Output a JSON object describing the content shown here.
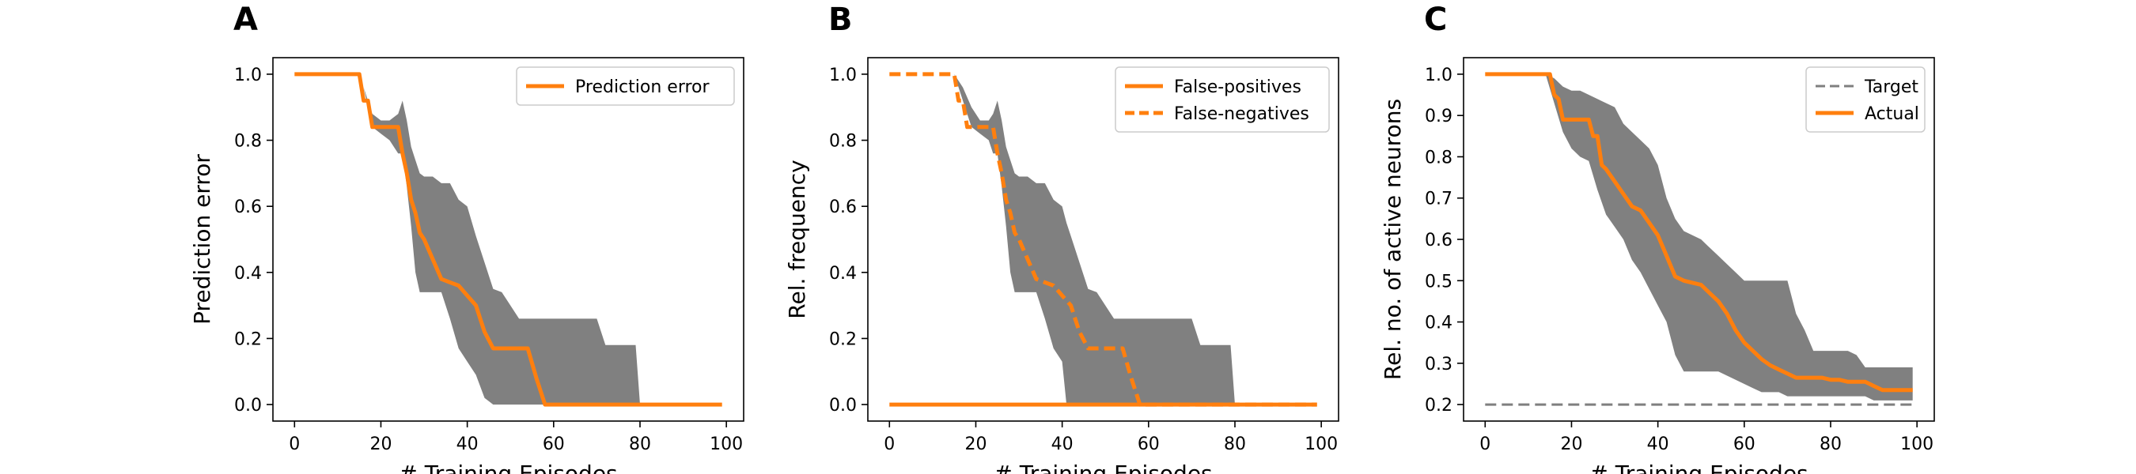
{
  "chart_data": [
    {
      "panel": "A",
      "type": "line",
      "xlabel": "# Training Episodes",
      "ylabel": "Prediction error",
      "xlim": [
        -5,
        104
      ],
      "ylim": [
        -0.05,
        1.05
      ],
      "xticks": [
        0,
        20,
        40,
        60,
        80,
        100
      ],
      "yticks": [
        0.0,
        0.2,
        0.4,
        0.6,
        0.8,
        1.0
      ],
      "ytick_labels": [
        "0.0",
        "0.2",
        "0.4",
        "0.6",
        "0.8",
        "1.0"
      ],
      "grid": false,
      "legend": {
        "position": "top-right"
      },
      "band": {
        "color": "#808080",
        "x": [
          0,
          15,
          16,
          17,
          18,
          20,
          22,
          24,
          25,
          26,
          27,
          28,
          29,
          30,
          32,
          34,
          36,
          38,
          40,
          42,
          44,
          46,
          48,
          50,
          52,
          54,
          56,
          58,
          59,
          60,
          62,
          64,
          66,
          68,
          70,
          72,
          74,
          76,
          78,
          79,
          80,
          85,
          90,
          95,
          99
        ],
        "upper": [
          1.0,
          1.0,
          0.96,
          0.92,
          0.88,
          0.86,
          0.86,
          0.88,
          0.92,
          0.86,
          0.78,
          0.74,
          0.7,
          0.69,
          0.69,
          0.67,
          0.67,
          0.62,
          0.6,
          0.51,
          0.43,
          0.35,
          0.34,
          0.3,
          0.26,
          0.26,
          0.26,
          0.26,
          0.26,
          0.26,
          0.26,
          0.26,
          0.26,
          0.26,
          0.26,
          0.18,
          0.18,
          0.18,
          0.18,
          0.18,
          0.0,
          0.0,
          0.0,
          0.0,
          0.0
        ],
        "lower": [
          1.0,
          1.0,
          0.96,
          0.9,
          0.84,
          0.82,
          0.8,
          0.76,
          0.76,
          0.66,
          0.54,
          0.4,
          0.34,
          0.34,
          0.34,
          0.34,
          0.26,
          0.17,
          0.13,
          0.09,
          0.02,
          0.0,
          0.0,
          0.0,
          0.0,
          0.0,
          0.0,
          0.0,
          0.0,
          0.0,
          0.0,
          0.0,
          0.0,
          0.0,
          0.0,
          0.0,
          0.0,
          0.0,
          0.0,
          0.0,
          0.0,
          0.0,
          0.0,
          0.0,
          0.0
        ]
      },
      "series": [
        {
          "name": "Prediction error",
          "color": "#ff7f0e",
          "dash": "solid",
          "x": [
            0,
            15,
            16,
            17,
            18,
            20,
            22,
            24,
            25,
            26,
            27,
            28,
            29,
            30,
            32,
            34,
            36,
            38,
            40,
            42,
            43,
            44,
            46,
            48,
            50,
            52,
            54,
            56,
            58,
            59,
            60,
            65,
            70,
            80,
            90,
            99
          ],
          "y": [
            1.0,
            1.0,
            0.92,
            0.92,
            0.84,
            0.84,
            0.84,
            0.84,
            0.76,
            0.7,
            0.62,
            0.58,
            0.52,
            0.5,
            0.44,
            0.38,
            0.37,
            0.36,
            0.33,
            0.3,
            0.26,
            0.22,
            0.17,
            0.17,
            0.17,
            0.17,
            0.17,
            0.08,
            0.0,
            0.0,
            0.0,
            0.0,
            0.0,
            0.0,
            0.0,
            0.0
          ]
        }
      ]
    },
    {
      "panel": "B",
      "type": "line",
      "xlabel": "# Training Episodes",
      "ylabel": "Rel. frequency",
      "xlim": [
        -5,
        104
      ],
      "ylim": [
        -0.05,
        1.05
      ],
      "xticks": [
        0,
        20,
        40,
        60,
        80,
        100
      ],
      "yticks": [
        0.0,
        0.2,
        0.4,
        0.6,
        0.8,
        1.0
      ],
      "ytick_labels": [
        "0.0",
        "0.2",
        "0.4",
        "0.6",
        "0.8",
        "1.0"
      ],
      "grid": false,
      "legend": {
        "position": "top-right"
      },
      "band": {
        "color": "#808080",
        "x": [
          15,
          17,
          19,
          21,
          23,
          24,
          25,
          26,
          27,
          28,
          29,
          30,
          32,
          34,
          36,
          38,
          40,
          41,
          42,
          44,
          46,
          48,
          50,
          52,
          54,
          56,
          58,
          60,
          62,
          64,
          66,
          68,
          70,
          72,
          74,
          76,
          78,
          79,
          80
        ],
        "upper": [
          1.0,
          0.96,
          0.9,
          0.86,
          0.86,
          0.88,
          0.92,
          0.86,
          0.78,
          0.74,
          0.7,
          0.69,
          0.69,
          0.67,
          0.67,
          0.62,
          0.6,
          0.55,
          0.51,
          0.43,
          0.35,
          0.34,
          0.3,
          0.26,
          0.26,
          0.26,
          0.26,
          0.26,
          0.26,
          0.26,
          0.26,
          0.26,
          0.26,
          0.18,
          0.18,
          0.18,
          0.18,
          0.18,
          0.0
        ],
        "lower": [
          1.0,
          0.92,
          0.84,
          0.82,
          0.8,
          0.76,
          0.76,
          0.66,
          0.54,
          0.4,
          0.34,
          0.34,
          0.34,
          0.34,
          0.26,
          0.17,
          0.13,
          0.0,
          0.0,
          0.0,
          0.0,
          0.0,
          0.0,
          0.0,
          0.0,
          0.0,
          0.0,
          0.0,
          0.0,
          0.0,
          0.0,
          0.0,
          0.0,
          0.0,
          0.0,
          0.0,
          0.0,
          0.0,
          0.0
        ]
      },
      "series": [
        {
          "name": "False-positives",
          "color": "#ff7f0e",
          "dash": "solid",
          "x": [
            0,
            20,
            40,
            60,
            80,
            99
          ],
          "y": [
            0.0,
            0.0,
            0.0,
            0.0,
            0.0,
            0.0
          ]
        },
        {
          "name": "False-negatives",
          "color": "#ff7f0e",
          "dash": "dashed",
          "x": [
            0,
            15,
            16,
            17,
            18,
            20,
            22,
            24,
            25,
            26,
            27,
            28,
            29,
            30,
            32,
            34,
            36,
            38,
            40,
            42,
            43,
            44,
            46,
            48,
            50,
            52,
            54,
            56,
            58,
            59,
            60,
            65,
            70,
            80,
            90,
            99
          ],
          "y": [
            1.0,
            1.0,
            0.92,
            0.92,
            0.84,
            0.84,
            0.84,
            0.84,
            0.76,
            0.7,
            0.62,
            0.58,
            0.52,
            0.5,
            0.44,
            0.38,
            0.37,
            0.36,
            0.33,
            0.3,
            0.26,
            0.22,
            0.17,
            0.17,
            0.17,
            0.17,
            0.17,
            0.08,
            0.0,
            0.0,
            0.0,
            0.0,
            0.0,
            0.0,
            0.0,
            0.0
          ]
        }
      ]
    },
    {
      "panel": "C",
      "type": "line",
      "xlabel": "# Training Episodes",
      "ylabel": "Rel. no. of active neurons",
      "xlim": [
        -5,
        104
      ],
      "ylim": [
        0.16,
        1.04
      ],
      "xticks": [
        0,
        20,
        40,
        60,
        80,
        100
      ],
      "yticks": [
        0.2,
        0.3,
        0.4,
        0.5,
        0.6,
        0.7,
        0.8,
        0.9,
        1.0
      ],
      "ytick_labels": [
        "0.2",
        "0.3",
        "0.4",
        "0.5",
        "0.6",
        "0.7",
        "0.8",
        "0.9",
        "1.0"
      ],
      "grid": false,
      "legend": {
        "position": "top-right"
      },
      "band": {
        "color": "#808080",
        "x": [
          0,
          14,
          16,
          18,
          20,
          22,
          24,
          26,
          28,
          30,
          32,
          34,
          36,
          38,
          40,
          42,
          44,
          46,
          48,
          50,
          52,
          54,
          56,
          58,
          60,
          62,
          64,
          66,
          68,
          70,
          72,
          74,
          76,
          78,
          80,
          82,
          84,
          86,
          88,
          90,
          92,
          94,
          96,
          98,
          99
        ],
        "upper": [
          1.0,
          1.0,
          0.99,
          0.97,
          0.96,
          0.96,
          0.95,
          0.94,
          0.93,
          0.92,
          0.88,
          0.86,
          0.84,
          0.82,
          0.78,
          0.7,
          0.65,
          0.62,
          0.61,
          0.6,
          0.58,
          0.56,
          0.54,
          0.52,
          0.5,
          0.5,
          0.5,
          0.5,
          0.5,
          0.5,
          0.42,
          0.38,
          0.33,
          0.33,
          0.33,
          0.33,
          0.33,
          0.32,
          0.29,
          0.29,
          0.29,
          0.29,
          0.29,
          0.29,
          0.29
        ],
        "lower": [
          1.0,
          1.0,
          0.93,
          0.86,
          0.82,
          0.8,
          0.79,
          0.72,
          0.66,
          0.63,
          0.6,
          0.55,
          0.52,
          0.48,
          0.44,
          0.4,
          0.32,
          0.28,
          0.28,
          0.28,
          0.28,
          0.28,
          0.27,
          0.26,
          0.25,
          0.24,
          0.23,
          0.23,
          0.23,
          0.22,
          0.22,
          0.22,
          0.22,
          0.22,
          0.22,
          0.22,
          0.22,
          0.22,
          0.22,
          0.21,
          0.21,
          0.21,
          0.21,
          0.21,
          0.21
        ]
      },
      "series": [
        {
          "name": "Target",
          "color": "#7f7f7f",
          "dash": "dashed",
          "x": [
            0,
            99
          ],
          "y": [
            0.2,
            0.2
          ]
        },
        {
          "name": "Actual",
          "color": "#ff7f0e",
          "dash": "solid",
          "x": [
            0,
            15,
            16,
            17,
            18,
            20,
            22,
            24,
            25,
            26,
            27,
            28,
            30,
            32,
            34,
            36,
            38,
            40,
            42,
            44,
            46,
            48,
            50,
            52,
            54,
            56,
            58,
            60,
            62,
            64,
            66,
            68,
            70,
            72,
            74,
            76,
            78,
            80,
            82,
            84,
            86,
            88,
            90,
            92,
            94,
            96,
            98,
            99
          ],
          "y": [
            1.0,
            1.0,
            0.95,
            0.94,
            0.89,
            0.89,
            0.89,
            0.89,
            0.85,
            0.85,
            0.78,
            0.77,
            0.74,
            0.71,
            0.68,
            0.67,
            0.64,
            0.61,
            0.56,
            0.51,
            0.5,
            0.495,
            0.49,
            0.47,
            0.45,
            0.42,
            0.38,
            0.35,
            0.33,
            0.31,
            0.295,
            0.285,
            0.275,
            0.265,
            0.265,
            0.265,
            0.265,
            0.26,
            0.26,
            0.255,
            0.255,
            0.255,
            0.245,
            0.235,
            0.235,
            0.235,
            0.235,
            0.235
          ]
        }
      ]
    }
  ]
}
